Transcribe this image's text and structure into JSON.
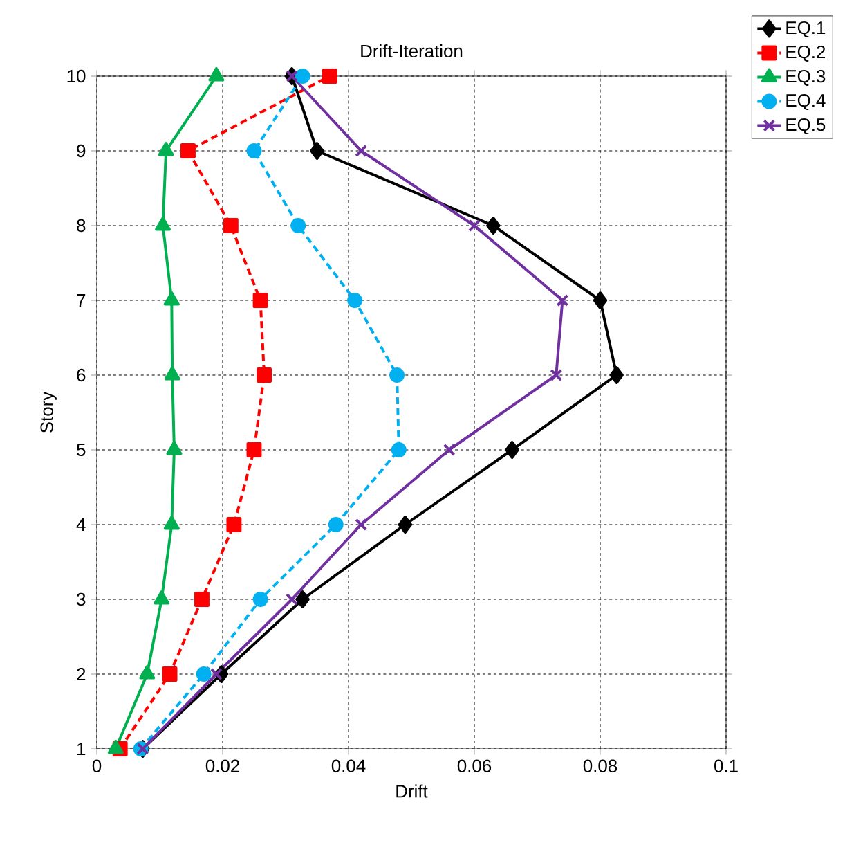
{
  "chart_data": {
    "type": "line",
    "title": "Drift-Iteration",
    "xlabel": "Drift",
    "ylabel": "Story",
    "xlim": [
      0,
      0.1
    ],
    "xticks": [
      0,
      0.02,
      0.04,
      0.06,
      0.08,
      0.1
    ],
    "ylim": [
      1,
      10
    ],
    "yticks": [
      1,
      2,
      3,
      4,
      5,
      6,
      7,
      8,
      9,
      10
    ],
    "grid": true,
    "legend": "top right",
    "series": [
      {
        "name": "EQ.1",
        "color": "#000000",
        "marker": "diamond",
        "line_style": "solid",
        "x": [
          0.0073,
          0.0198,
          0.0327,
          0.049,
          0.066,
          0.0826,
          0.08,
          0.063,
          0.035,
          0.031
        ],
        "values": [
          1,
          2,
          3,
          4,
          5,
          6,
          7,
          8,
          9,
          10
        ]
      },
      {
        "name": "EQ.2",
        "color": "#ff0000",
        "marker": "square",
        "line_style": "dashed",
        "x": [
          0.0037,
          0.0116,
          0.0167,
          0.0218,
          0.025,
          0.0266,
          0.026,
          0.0213,
          0.0145,
          0.037
        ],
        "values": [
          1,
          2,
          3,
          4,
          5,
          6,
          7,
          8,
          9,
          10
        ]
      },
      {
        "name": "EQ.3",
        "color": "#00b050",
        "marker": "triangle",
        "line_style": "solid",
        "x": [
          0.003,
          0.008,
          0.0103,
          0.0119,
          0.0123,
          0.012,
          0.0119,
          0.0105,
          0.011,
          0.019
        ],
        "values": [
          1,
          2,
          3,
          4,
          5,
          6,
          7,
          8,
          9,
          10
        ]
      },
      {
        "name": "EQ.4",
        "color": "#00b0f0",
        "marker": "circle",
        "line_style": "dashed",
        "x": [
          0.007,
          0.017,
          0.026,
          0.038,
          0.048,
          0.0477,
          0.041,
          0.032,
          0.025,
          0.0327
        ],
        "values": [
          1,
          2,
          3,
          4,
          5,
          6,
          7,
          8,
          9,
          10
        ]
      },
      {
        "name": "EQ.5",
        "color": "#7030a0",
        "marker": "cross",
        "line_style": "solid",
        "x": [
          0.0073,
          0.019,
          0.031,
          0.042,
          0.056,
          0.073,
          0.074,
          0.06,
          0.042,
          0.031
        ],
        "values": [
          1,
          2,
          3,
          4,
          5,
          6,
          7,
          8,
          9,
          10
        ]
      }
    ]
  }
}
